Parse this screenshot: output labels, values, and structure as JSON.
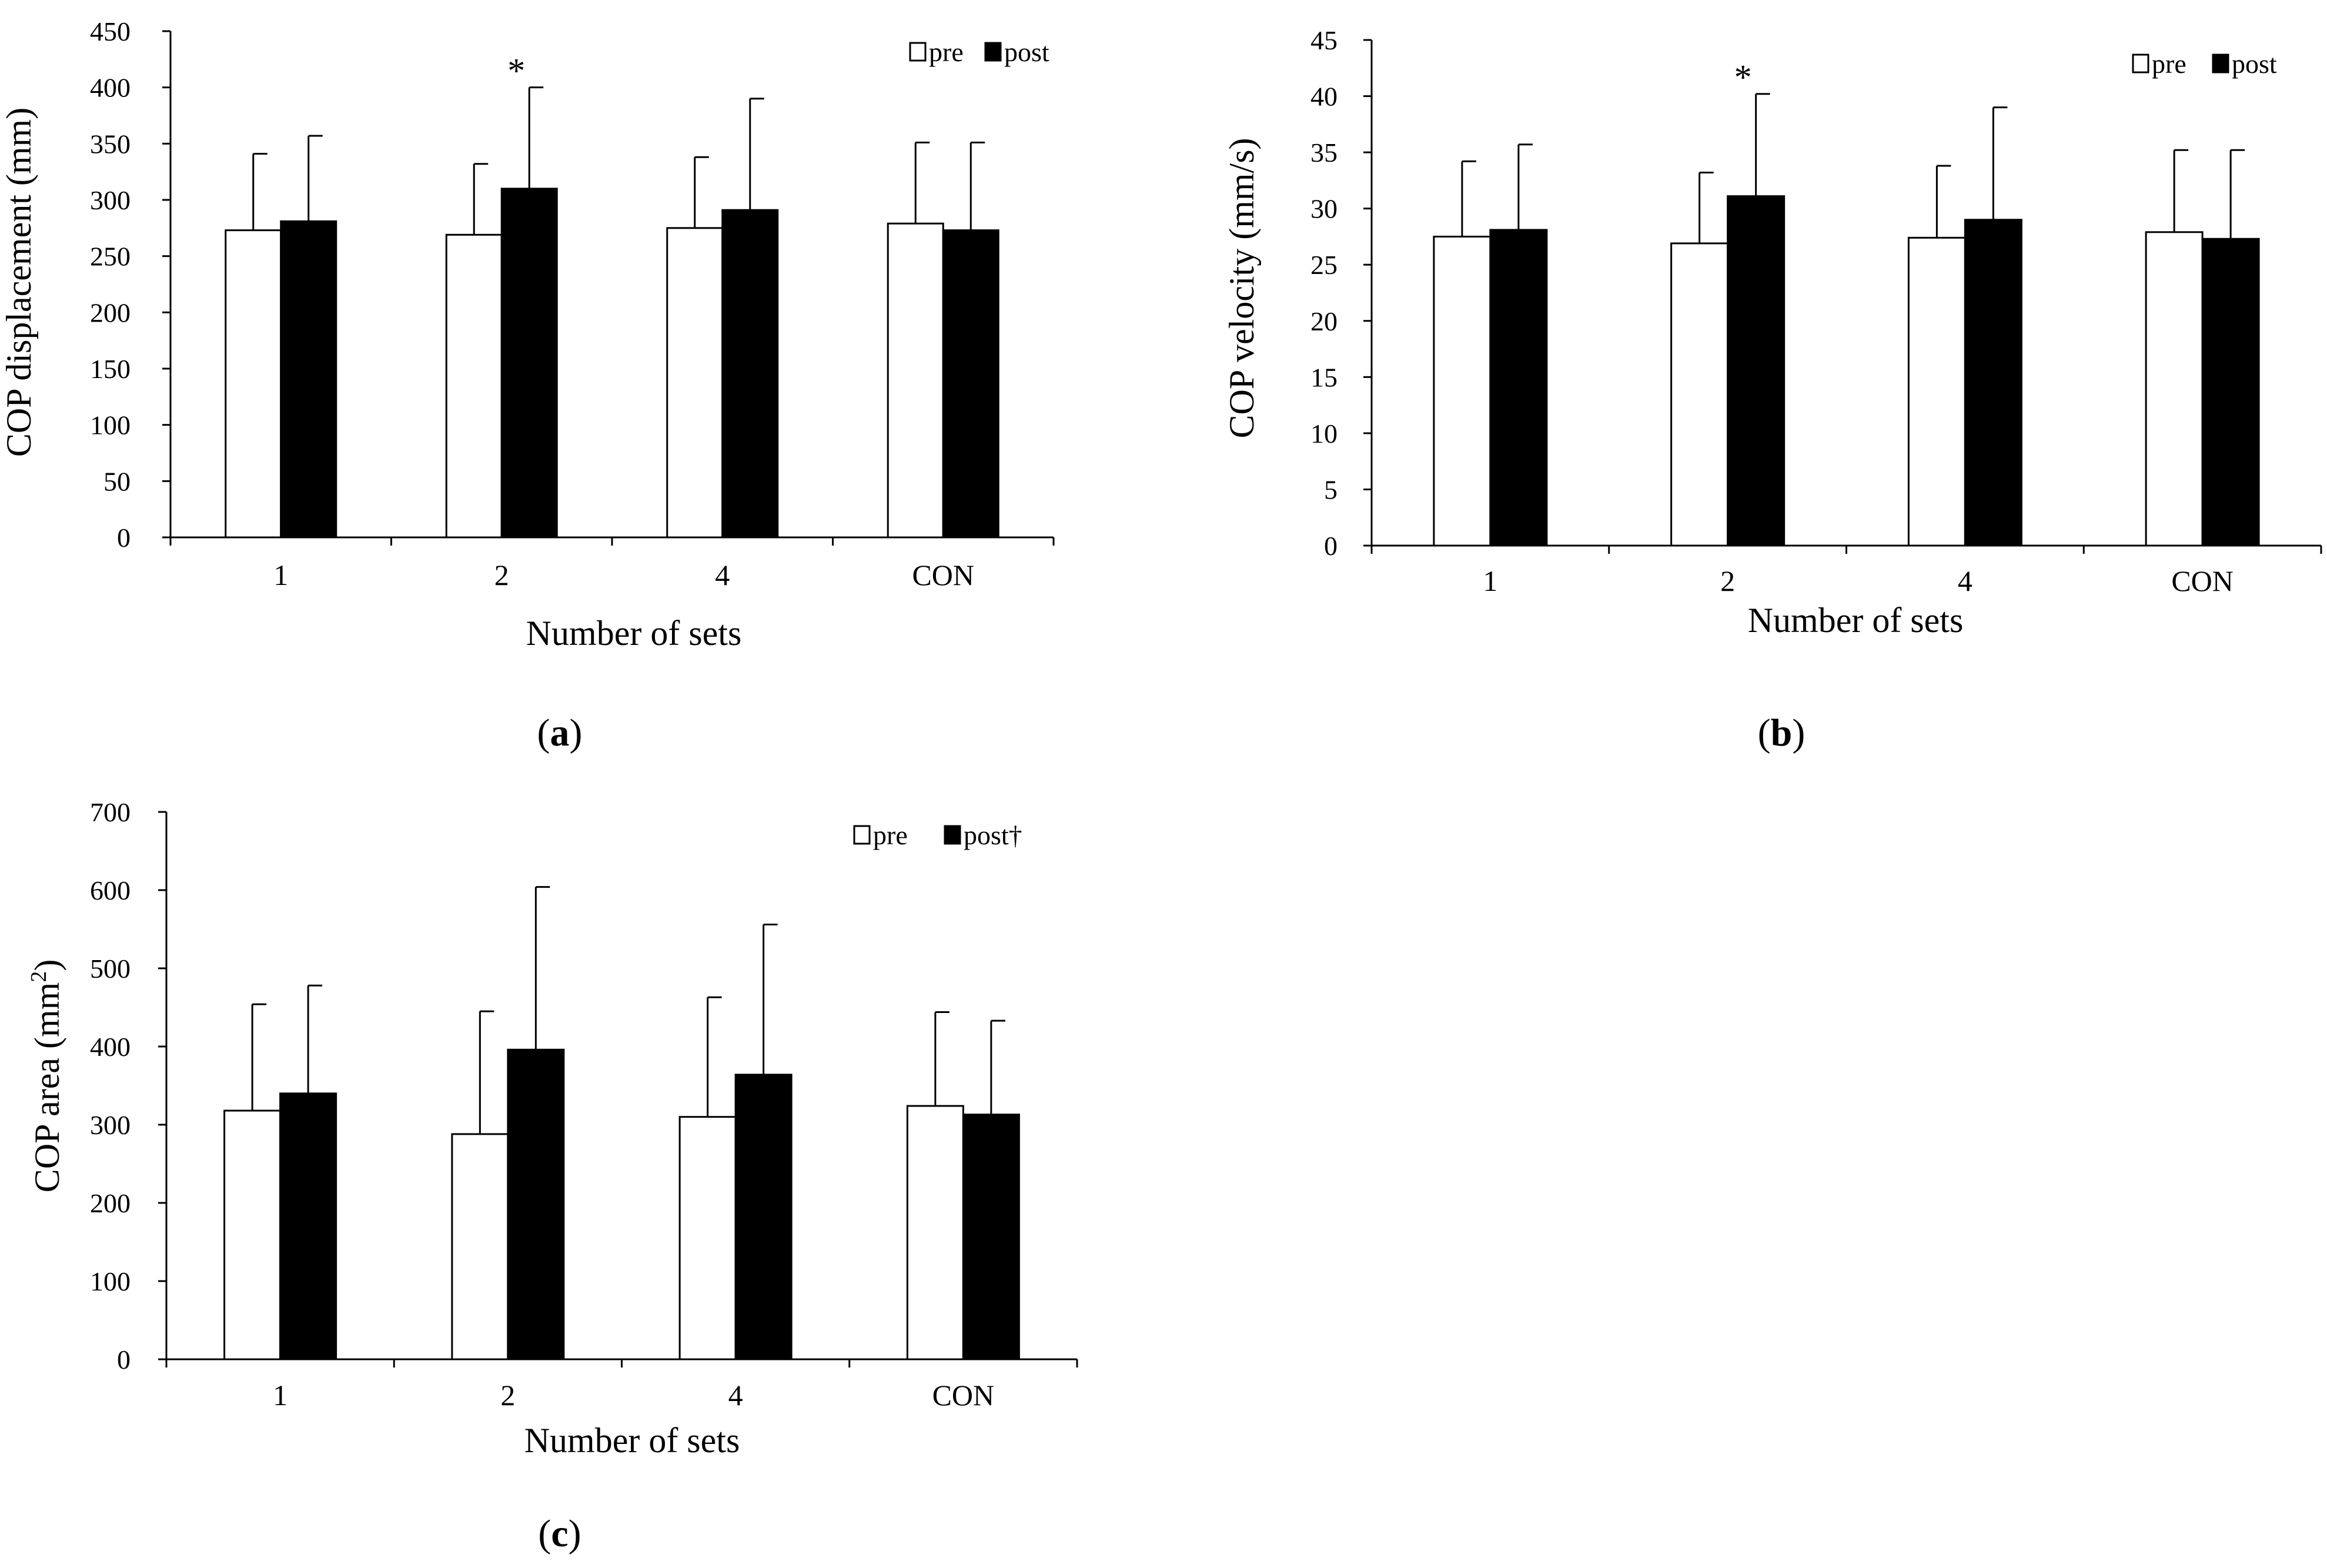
{
  "chart_data": [
    {
      "panel": "(a)",
      "panel_open": "(",
      "panel_letter": "a",
      "panel_close": ")",
      "type": "bar",
      "categories": [
        "1",
        "2",
        "4",
        "CON"
      ],
      "series": [
        {
          "name": "pre",
          "values": [
            273,
            269,
            275,
            279
          ],
          "errors": [
            68,
            63,
            63,
            72
          ]
        },
        {
          "name": "post",
          "values": [
            281,
            310,
            291,
            273
          ],
          "errors": [
            76,
            90,
            99,
            78
          ]
        }
      ],
      "xlabel": "Number of sets",
      "ylabel": "COP displacement (mm)",
      "ylim": [
        0,
        450
      ],
      "yticks": [
        0,
        50,
        100,
        150,
        200,
        250,
        300,
        350,
        400,
        450
      ],
      "legend": {
        "pre": "pre",
        "post": "post",
        "placement": "top-right"
      },
      "annotation": {
        "text": "*",
        "category": "2",
        "series": "post"
      }
    },
    {
      "panel": "(b)",
      "panel_open": "(",
      "panel_letter": "b",
      "panel_close": ")",
      "type": "bar",
      "categories": [
        "1",
        "2",
        "4",
        "CON"
      ],
      "series": [
        {
          "name": "pre",
          "values": [
            27.5,
            26.9,
            27.4,
            27.9
          ],
          "errors": [
            6.7,
            6.3,
            6.4,
            7.3
          ]
        },
        {
          "name": "post",
          "values": [
            28.1,
            31.1,
            29.0,
            27.3
          ],
          "errors": [
            7.6,
            9.1,
            10.0,
            7.9
          ]
        }
      ],
      "xlabel": "Number of sets",
      "ylabel": "COP velocity (mm/s)",
      "ylim": [
        0,
        45
      ],
      "yticks": [
        0,
        5,
        10,
        15,
        20,
        25,
        30,
        35,
        40,
        45
      ],
      "legend": {
        "pre": "pre",
        "post": "post",
        "placement": "top-right"
      },
      "annotation": {
        "text": "*",
        "category": "2",
        "series": "post"
      }
    },
    {
      "panel": "(c)",
      "panel_open": "(",
      "panel_letter": "c",
      "panel_close": ")",
      "type": "bar",
      "categories": [
        "1",
        "2",
        "4",
        "CON"
      ],
      "series": [
        {
          "name": "pre",
          "values": [
            318,
            288,
            310,
            324
          ],
          "errors": [
            136,
            157,
            153,
            120
          ]
        },
        {
          "name": "post",
          "values": [
            340,
            396,
            364,
            313
          ],
          "errors": [
            138,
            208,
            192,
            120
          ]
        }
      ],
      "xlabel": "Number of sets",
      "ylabel": "COP area (mm²)",
      "ylabel_main": "COP area (mm",
      "ylabel_sup": "2",
      "ylabel_end": ")",
      "ylim": [
        0,
        700
      ],
      "yticks": [
        0,
        100,
        200,
        300,
        400,
        500,
        600,
        700
      ],
      "legend": {
        "pre": "pre",
        "post": "post†",
        "placement": "top-right"
      }
    }
  ],
  "colors": {
    "pre_fill": "#ffffff",
    "post_fill": "#000000",
    "axis": "#000000"
  }
}
